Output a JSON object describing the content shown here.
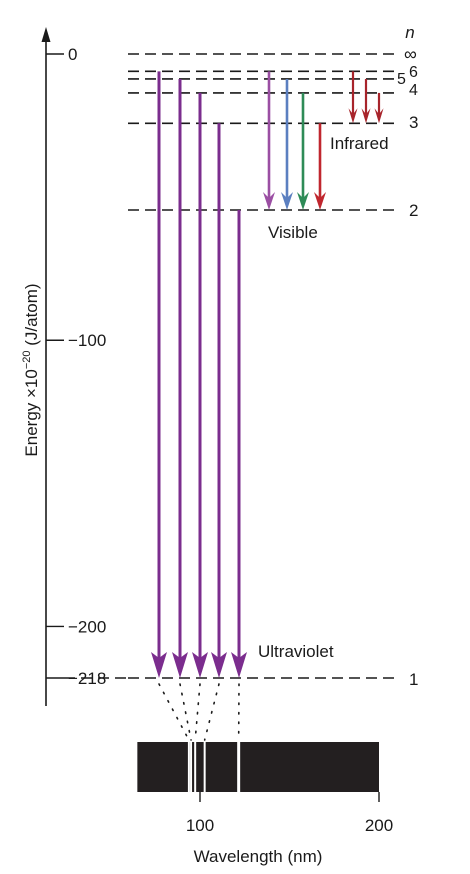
{
  "diagram": {
    "energy_axis_label": "Energy ×10",
    "energy_axis_exponent": "−20",
    "energy_axis_unit": " (J/atom)",
    "energy_ticks": [
      {
        "value": 0,
        "label": "0"
      },
      {
        "value": -100,
        "label": "−100"
      },
      {
        "value": -200,
        "label": "−200"
      },
      {
        "value": -218,
        "label": "−218"
      }
    ],
    "n_header": "n",
    "levels": [
      {
        "n": "∞",
        "energy": 0
      },
      {
        "n": "6",
        "energy": -6.06
      },
      {
        "n": "5",
        "energy": -8.72
      },
      {
        "n": "4",
        "energy": -13.6
      },
      {
        "n": "3",
        "energy": -24.2
      },
      {
        "n": "2",
        "energy": -54.5
      },
      {
        "n": "1",
        "energy": -218
      }
    ],
    "region_labels": {
      "ultraviolet": "Ultraviolet",
      "visible": "Visible",
      "infrared": "Infrared"
    },
    "colors": {
      "ultraviolet": "#7b2d8e",
      "violet": "#9b4fa3",
      "blue": "#5b7fc0",
      "green": "#2e8b57",
      "red": "#c0262e",
      "infrared": "#a8242b",
      "spectrum_background": "#231f20",
      "spectrum_line": "#ffffff"
    },
    "transitions": [
      {
        "from": 6,
        "to": 1,
        "color": "ultraviolet"
      },
      {
        "from": 5,
        "to": 1,
        "color": "ultraviolet"
      },
      {
        "from": 4,
        "to": 1,
        "color": "ultraviolet"
      },
      {
        "from": 3,
        "to": 1,
        "color": "ultraviolet"
      },
      {
        "from": 2,
        "to": 1,
        "color": "ultraviolet"
      },
      {
        "from": 6,
        "to": 2,
        "color": "violet"
      },
      {
        "from": 5,
        "to": 2,
        "color": "blue"
      },
      {
        "from": 4,
        "to": 2,
        "color": "green"
      },
      {
        "from": 3,
        "to": 2,
        "color": "red"
      },
      {
        "from": 6,
        "to": 3,
        "color": "infrared"
      },
      {
        "from": 5,
        "to": 3,
        "color": "infrared"
      },
      {
        "from": 4,
        "to": 3,
        "color": "infrared"
      }
    ],
    "spectrum": {
      "axis_label": "Wavelength (nm)",
      "ticks": [
        {
          "value": 100,
          "label": "100"
        },
        {
          "value": 200,
          "label": "200"
        }
      ],
      "range_nm": [
        65,
        200
      ],
      "lines_nm": [
        93.8,
        95.0,
        97.3,
        102.6,
        121.6
      ]
    }
  }
}
